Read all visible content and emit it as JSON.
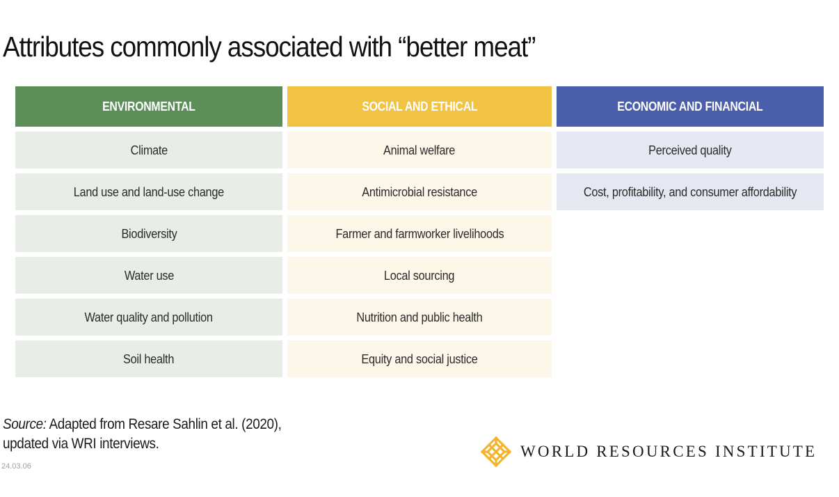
{
  "title": "Attributes commonly associated with “better meat”",
  "colors": {
    "environmental_header": "#5b8f57",
    "environmental_cell": "#e8ede7",
    "social_header": "#f2c242",
    "social_cell": "#fdf7ea",
    "economic_header": "#4a5eab",
    "economic_cell": "#e6e8f1",
    "logo": "#f3b52e"
  },
  "columns": [
    {
      "header": "ENVIRONMENTAL",
      "items": [
        "Climate",
        "Land use and land-use change",
        "Biodiversity",
        "Water use",
        "Water quality and pollution",
        "Soil health"
      ]
    },
    {
      "header": "SOCIAL AND ETHICAL",
      "items": [
        "Animal welfare",
        "Antimicrobial resistance",
        "Farmer and farmworker livelihoods",
        "Local sourcing",
        "Nutrition and public health",
        "Equity and social justice"
      ]
    },
    {
      "header": "ECONOMIC AND FINANCIAL",
      "items": [
        "Perceived quality",
        "Cost, profitability, and consumer affordability"
      ]
    }
  ],
  "source": {
    "label": "Source:",
    "line1": " Adapted from Resare Sahlin et al. (2020),",
    "line2": "updated via WRI interviews."
  },
  "date": "24.03.06",
  "logo": {
    "icon": "wri-logo-icon",
    "text": "WORLD RESOURCES INSTITUTE"
  }
}
